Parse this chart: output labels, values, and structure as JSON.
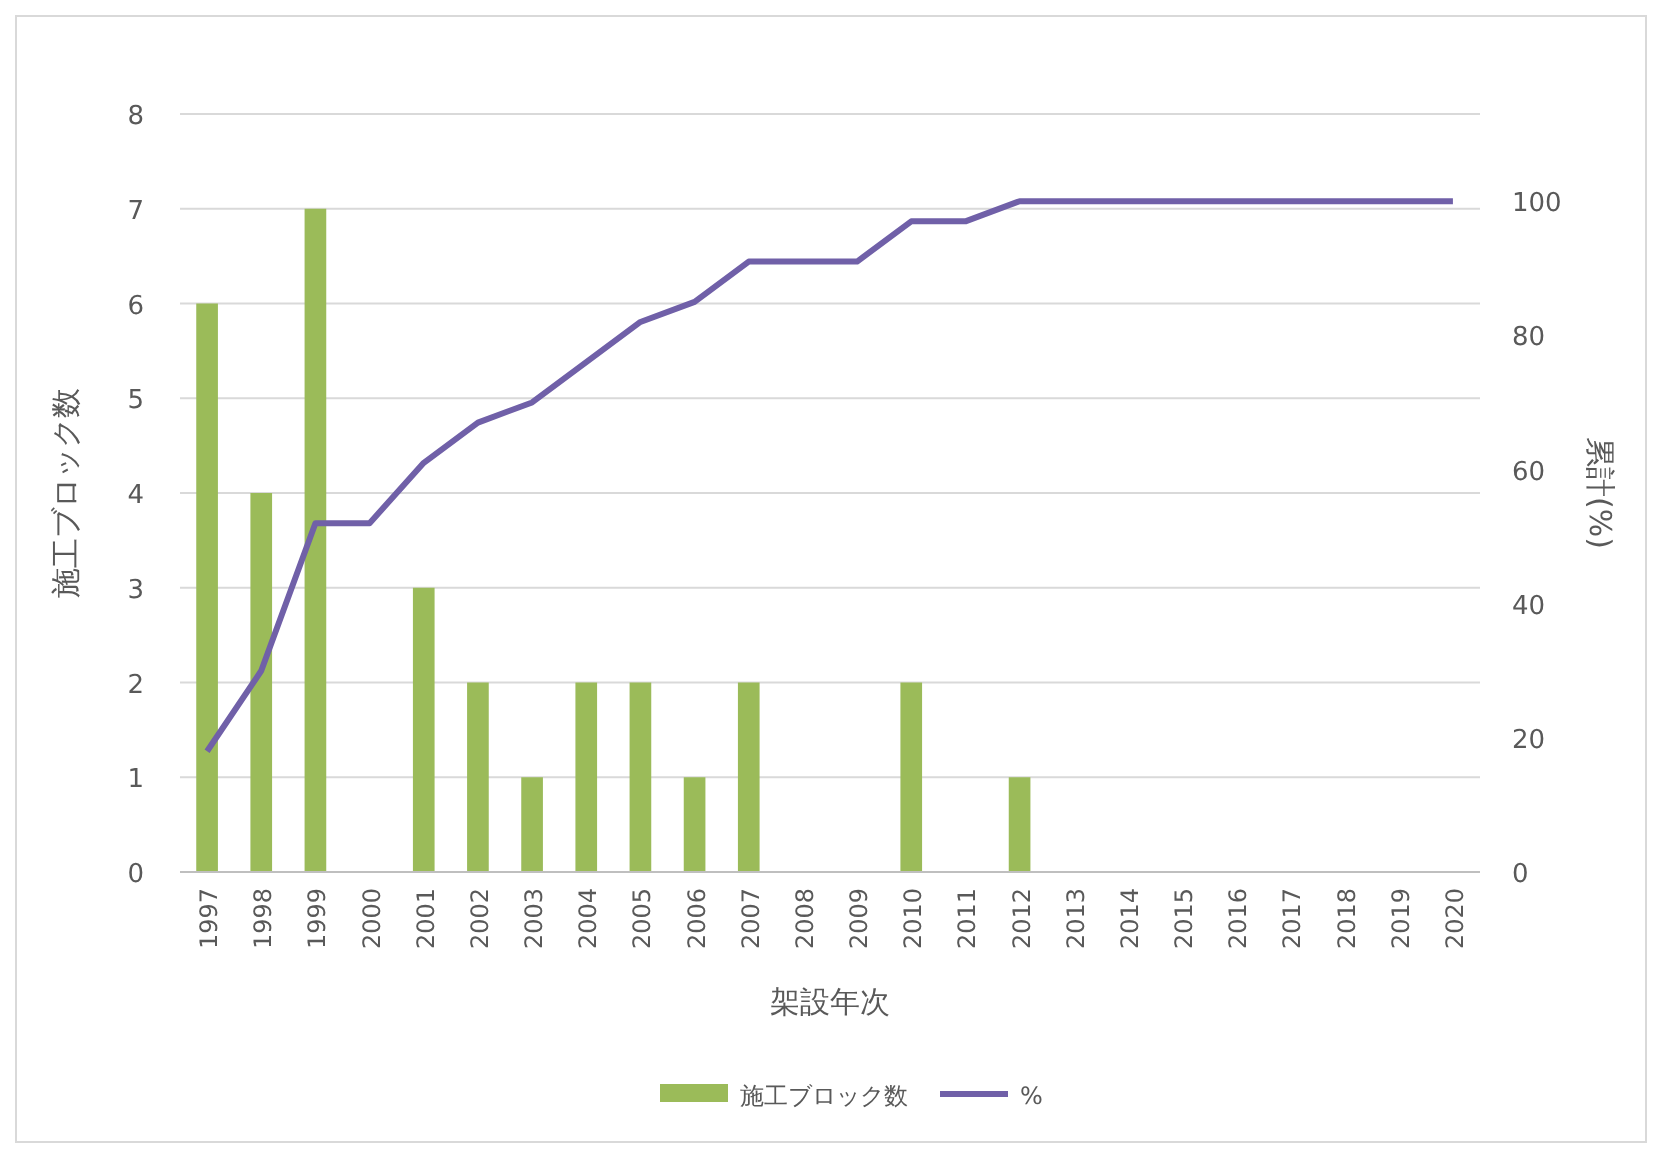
{
  "chart_data": {
    "type": "bar",
    "xlabel": "架設年次",
    "ylabel": "施工ブロック数",
    "y2label": "累計(%)",
    "categories": [
      "1997",
      "1998",
      "1999",
      "2000",
      "2001",
      "2002",
      "2003",
      "2004",
      "2005",
      "2006",
      "2007",
      "2008",
      "2009",
      "2010",
      "2011",
      "2012",
      "2013",
      "2014",
      "2015",
      "2016",
      "2017",
      "2018",
      "2019",
      "2020"
    ],
    "series": [
      {
        "name": "施工ブロック数",
        "color": "#9bbb59",
        "values": [
          6,
          4,
          7,
          0,
          3,
          2,
          1,
          2,
          2,
          1,
          2,
          0,
          0,
          2,
          0,
          1,
          0,
          0,
          0,
          0,
          0,
          0,
          0,
          0
        ]
      },
      {
        "name": "%",
        "type": "line",
        "axis": "y2",
        "color": "#7060a8",
        "values": [
          18,
          30,
          52,
          52,
          61,
          67,
          70,
          76,
          82,
          85,
          91,
          91,
          91,
          97,
          97,
          100,
          100,
          100,
          100,
          100,
          100,
          100,
          100,
          100
        ]
      }
    ],
    "ylim": [
      0,
      8
    ],
    "yticks": [
      0,
      1,
      2,
      3,
      4,
      5,
      6,
      7,
      8
    ],
    "y2lim": [
      0,
      113
    ],
    "y2ticks": [
      0,
      20,
      40,
      60,
      80,
      100
    ],
    "grid": "y",
    "legend": "bottom",
    "marker": "none",
    "line_style": "solid"
  }
}
